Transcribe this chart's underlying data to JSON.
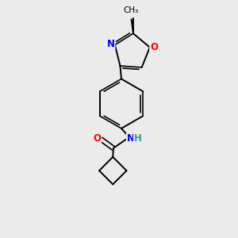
{
  "background_color": "#ebebeb",
  "bond_color": "#000000",
  "atom_colors": {
    "N": "#0000ff",
    "O": "#ff0000",
    "H": "#3a9a9a"
  },
  "figsize": [
    3.0,
    3.0
  ],
  "dpi": 100,
  "lw": 1.4,
  "lw_double": 1.2
}
